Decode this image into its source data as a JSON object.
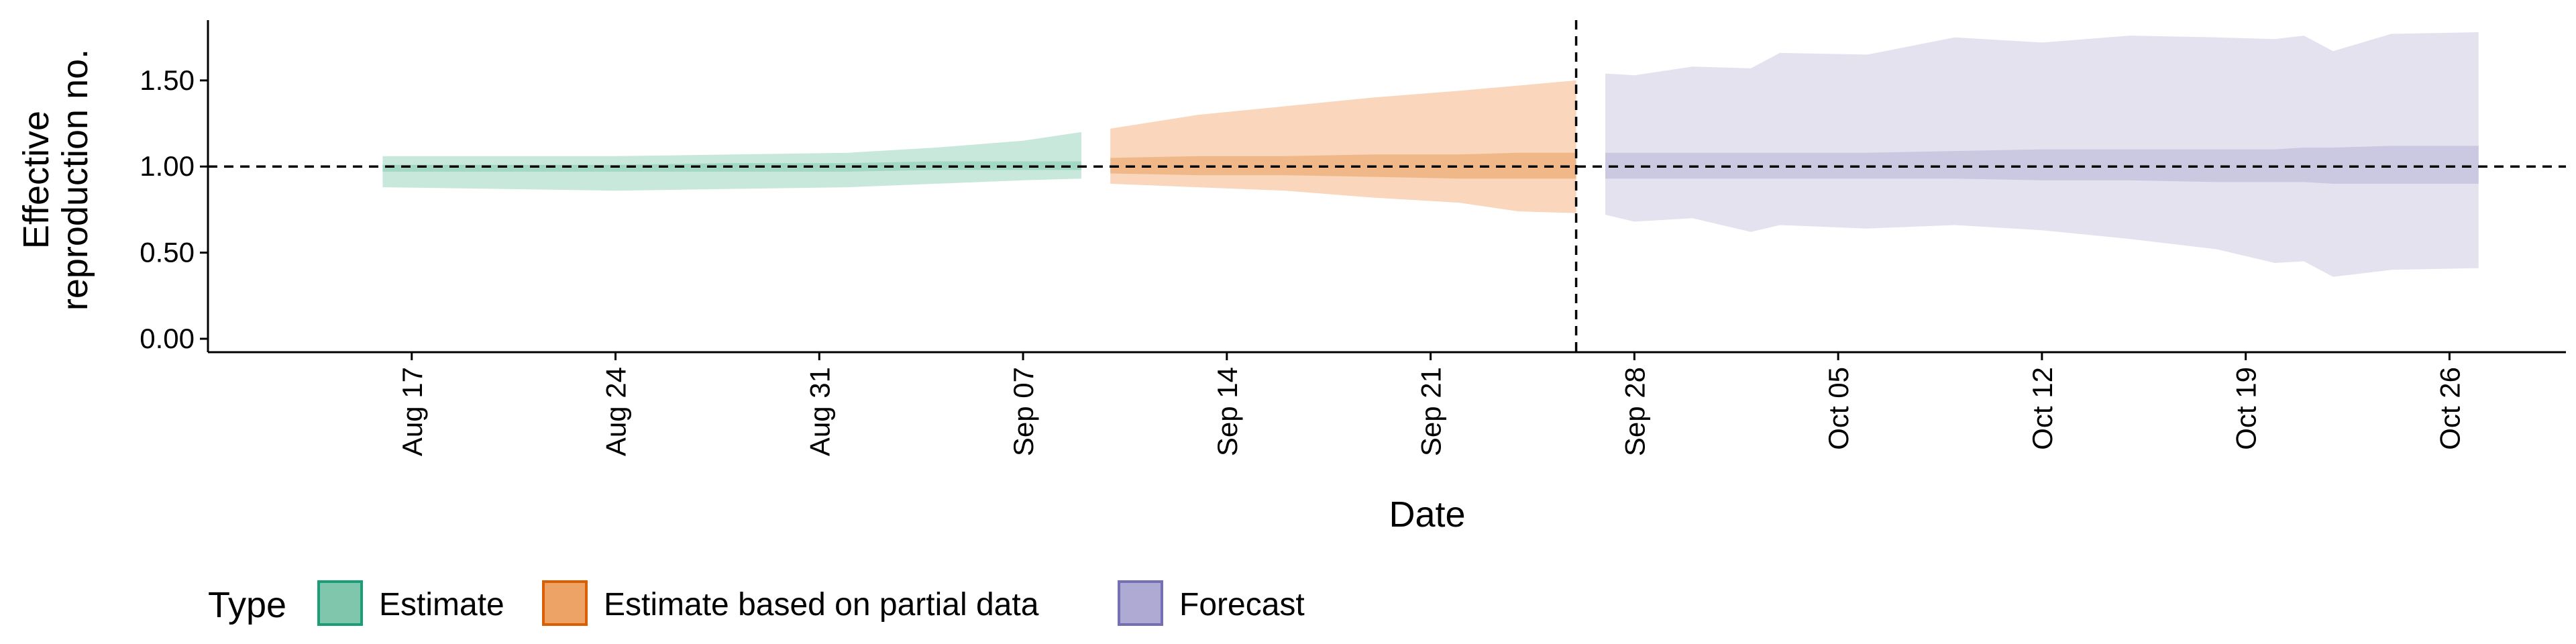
{
  "chart_data": {
    "type": "area",
    "xlabel": "Date",
    "ylabel_lines": [
      "Effective",
      "reproduction no."
    ],
    "ylim": [
      0,
      1.85
    ],
    "xlim": [
      "2022-08-10",
      "2022-10-30"
    ],
    "y_ticks": [
      {
        "value": 0.0,
        "label": "0.00"
      },
      {
        "value": 0.5,
        "label": "0.50"
      },
      {
        "value": 1.0,
        "label": "1.00"
      },
      {
        "value": 1.5,
        "label": "1.50"
      }
    ],
    "x_ticks": [
      {
        "date": "2022-08-17",
        "label": "Aug 17"
      },
      {
        "date": "2022-08-24",
        "label": "Aug 24"
      },
      {
        "date": "2022-08-31",
        "label": "Aug 31"
      },
      {
        "date": "2022-09-07",
        "label": "Sep 07"
      },
      {
        "date": "2022-09-14",
        "label": "Sep 14"
      },
      {
        "date": "2022-09-21",
        "label": "Sep 21"
      },
      {
        "date": "2022-09-28",
        "label": "Sep 28"
      },
      {
        "date": "2022-10-05",
        "label": "Oct 05"
      },
      {
        "date": "2022-10-12",
        "label": "Oct 12"
      },
      {
        "date": "2022-10-19",
        "label": "Oct 19"
      },
      {
        "date": "2022-10-26",
        "label": "Oct 26"
      }
    ],
    "reference_hline": 1.0,
    "reference_vline": "2022-09-26",
    "legend": {
      "title": "Type",
      "position": "bottom-left",
      "entries": [
        {
          "label": "Estimate",
          "fill": "#7fc6ad",
          "stroke": "#1b9e77"
        },
        {
          "label": "Estimate based on partial data",
          "fill": "#eda266",
          "stroke": "#d95f02"
        },
        {
          "label": "Forecast",
          "fill": "#aeaad3",
          "stroke": "#7570b3"
        }
      ]
    },
    "series": [
      {
        "name": "Estimate",
        "outer_color": "#c9e8dc",
        "inner_color": "#a3d8c4",
        "points": [
          {
            "date": "2022-08-16",
            "lo90": 0.88,
            "hi90": 1.06,
            "lo50": 0.97,
            "hi50": 1.01
          },
          {
            "date": "2022-08-20",
            "lo90": 0.87,
            "hi90": 1.06,
            "lo50": 0.97,
            "hi50": 1.01
          },
          {
            "date": "2022-08-24",
            "lo90": 0.86,
            "hi90": 1.06,
            "lo50": 0.97,
            "hi50": 1.01
          },
          {
            "date": "2022-08-28",
            "lo90": 0.87,
            "hi90": 1.07,
            "lo50": 0.97,
            "hi50": 1.02
          },
          {
            "date": "2022-09-01",
            "lo90": 0.88,
            "hi90": 1.08,
            "lo50": 0.97,
            "hi50": 1.02
          },
          {
            "date": "2022-09-04",
            "lo90": 0.9,
            "hi90": 1.11,
            "lo50": 0.98,
            "hi50": 1.03
          },
          {
            "date": "2022-09-07",
            "lo90": 0.92,
            "hi90": 1.15,
            "lo50": 0.98,
            "hi50": 1.03
          },
          {
            "date": "2022-09-09",
            "lo90": 0.93,
            "hi90": 1.2,
            "lo50": 0.98,
            "hi50": 1.03
          }
        ]
      },
      {
        "name": "Estimate based on partial data",
        "outer_color": "#f9d6bc",
        "inner_color": "#f0b889",
        "points": [
          {
            "date": "2022-09-10",
            "lo90": 0.9,
            "hi90": 1.22,
            "lo50": 0.96,
            "hi50": 1.05
          },
          {
            "date": "2022-09-13",
            "lo90": 0.88,
            "hi90": 1.3,
            "lo50": 0.95,
            "hi50": 1.06
          },
          {
            "date": "2022-09-16",
            "lo90": 0.86,
            "hi90": 1.35,
            "lo50": 0.95,
            "hi50": 1.06
          },
          {
            "date": "2022-09-19",
            "lo90": 0.82,
            "hi90": 1.4,
            "lo50": 0.94,
            "hi50": 1.07
          },
          {
            "date": "2022-09-22",
            "lo90": 0.79,
            "hi90": 1.44,
            "lo50": 0.93,
            "hi50": 1.07
          },
          {
            "date": "2022-09-24",
            "lo90": 0.74,
            "hi90": 1.47,
            "lo50": 0.93,
            "hi50": 1.08
          },
          {
            "date": "2022-09-26",
            "lo90": 0.73,
            "hi90": 1.5,
            "lo50": 0.93,
            "hi50": 1.08
          }
        ]
      },
      {
        "name": "Forecast",
        "outer_color": "#e4e2ef",
        "inner_color": "#cbc8e2",
        "points": [
          {
            "date": "2022-09-27",
            "lo90": 0.72,
            "hi90": 1.54,
            "lo50": 0.93,
            "hi50": 1.08
          },
          {
            "date": "2022-09-28",
            "lo90": 0.68,
            "hi90": 1.53,
            "lo50": 0.93,
            "hi50": 1.08
          },
          {
            "date": "2022-09-30",
            "lo90": 0.7,
            "hi90": 1.58,
            "lo50": 0.93,
            "hi50": 1.08
          },
          {
            "date": "2022-10-02",
            "lo90": 0.62,
            "hi90": 1.57,
            "lo50": 0.93,
            "hi50": 1.08
          },
          {
            "date": "2022-10-03",
            "lo90": 0.66,
            "hi90": 1.66,
            "lo50": 0.93,
            "hi50": 1.08
          },
          {
            "date": "2022-10-06",
            "lo90": 0.64,
            "hi90": 1.65,
            "lo50": 0.93,
            "hi50": 1.08
          },
          {
            "date": "2022-10-09",
            "lo90": 0.66,
            "hi90": 1.75,
            "lo50": 0.93,
            "hi50": 1.09
          },
          {
            "date": "2022-10-12",
            "lo90": 0.63,
            "hi90": 1.72,
            "lo50": 0.92,
            "hi50": 1.1
          },
          {
            "date": "2022-10-15",
            "lo90": 0.58,
            "hi90": 1.76,
            "lo50": 0.92,
            "hi50": 1.1
          },
          {
            "date": "2022-10-18",
            "lo90": 0.52,
            "hi90": 1.75,
            "lo50": 0.91,
            "hi50": 1.1
          },
          {
            "date": "2022-10-20",
            "lo90": 0.44,
            "hi90": 1.74,
            "lo50": 0.91,
            "hi50": 1.1
          },
          {
            "date": "2022-10-21",
            "lo90": 0.45,
            "hi90": 1.76,
            "lo50": 0.91,
            "hi50": 1.11
          },
          {
            "date": "2022-10-22",
            "lo90": 0.36,
            "hi90": 1.67,
            "lo50": 0.9,
            "hi50": 1.11
          },
          {
            "date": "2022-10-24",
            "lo90": 0.4,
            "hi90": 1.77,
            "lo50": 0.9,
            "hi50": 1.12
          },
          {
            "date": "2022-10-27",
            "lo90": 0.41,
            "hi90": 1.78,
            "lo50": 0.9,
            "hi50": 1.12
          }
        ]
      }
    ]
  }
}
